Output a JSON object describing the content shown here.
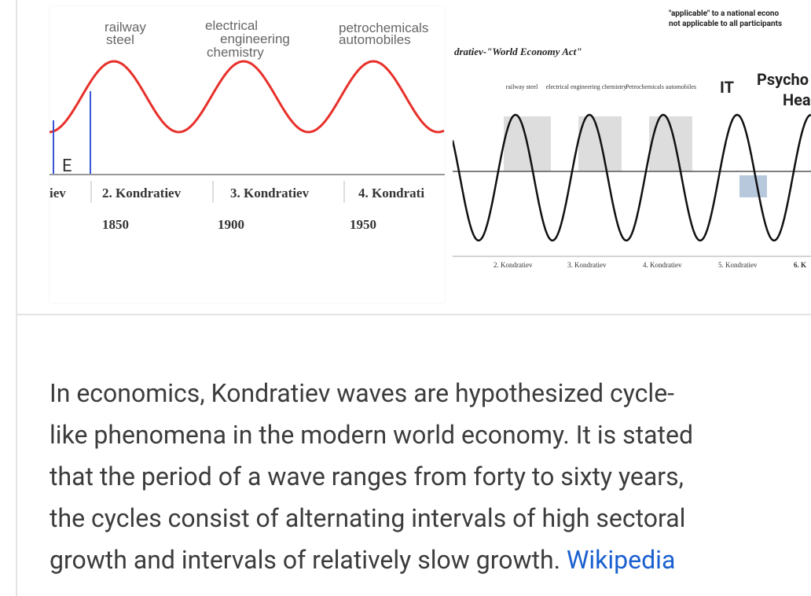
{
  "image1": {
    "labels": [
      "railway",
      "steel",
      "electrical",
      "engineering",
      "chemistry",
      "petrochemicals",
      "automobiles",
      "E"
    ],
    "waves": [
      "iev",
      "2. Kondratiev",
      "3. Kondratiev",
      "4. Kondrati"
    ],
    "years": [
      "1850",
      "1900",
      "1950"
    ]
  },
  "image2": {
    "note": [
      "\"applicable\" to a national econo",
      "not applicable to all participants"
    ],
    "title": "dratiev-\"World Economy Act\"",
    "labels": [
      "railway steel",
      "electrical engineering chemistry",
      "Petrochemicals automobiles",
      "IT",
      "Psycho",
      "Hea"
    ],
    "waves": [
      "2. Kondratiev",
      "3. Kondratiev",
      "4. Kondratiev",
      "5. Kondratiev",
      "6. K"
    ]
  },
  "description": {
    "lines": [
      "In economics, Kondratiev waves are hypothesized cycle-",
      "like phenomena in the modern world economy. It is stated",
      "that the period of a wave ranges from forty to sixty years,",
      "the cycles consist of alternating intervals of high sectoral",
      "growth and intervals of relatively slow growth."
    ],
    "source": "Wikipedia"
  }
}
